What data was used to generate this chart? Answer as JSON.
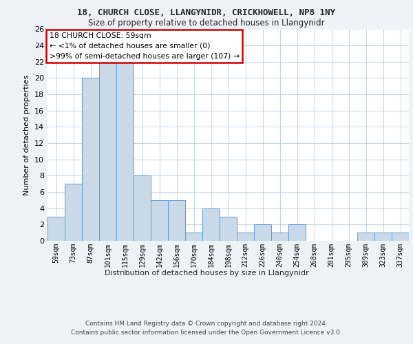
{
  "title1": "18, CHURCH CLOSE, LLANGYNIDR, CRICKHOWELL, NP8 1NY",
  "title2": "Size of property relative to detached houses in Llangynidr",
  "xlabel": "Distribution of detached houses by size in Llangynidr",
  "ylabel": "Number of detached properties",
  "categories": [
    "59sqm",
    "73sqm",
    "87sqm",
    "101sqm",
    "115sqm",
    "129sqm",
    "142sqm",
    "156sqm",
    "170sqm",
    "184sqm",
    "198sqm",
    "212sqm",
    "226sqm",
    "240sqm",
    "254sqm",
    "268sqm",
    "281sqm",
    "295sqm",
    "309sqm",
    "323sqm",
    "337sqm"
  ],
  "values": [
    3,
    7,
    20,
    22,
    22,
    8,
    5,
    5,
    1,
    4,
    3,
    1,
    2,
    1,
    2,
    0,
    0,
    0,
    1,
    1,
    1
  ],
  "bar_color": "#c9d9e8",
  "bar_edgecolor": "#5b9bd5",
  "annotation_text": "18 CHURCH CLOSE: 59sqm\n← <1% of detached houses are smaller (0)\n>99% of semi-detached houses are larger (107) →",
  "annotation_box_color": "#ffffff",
  "annotation_box_edgecolor": "#cc0000",
  "ylim": [
    0,
    26
  ],
  "yticks": [
    0,
    2,
    4,
    6,
    8,
    10,
    12,
    14,
    16,
    18,
    20,
    22,
    24,
    26
  ],
  "footer_line1": "Contains HM Land Registry data © Crown copyright and database right 2024.",
  "footer_line2": "Contains public sector information licensed under the Open Government Licence v3.0.",
  "background_color": "#eef2f7",
  "plot_background_color": "#ffffff"
}
